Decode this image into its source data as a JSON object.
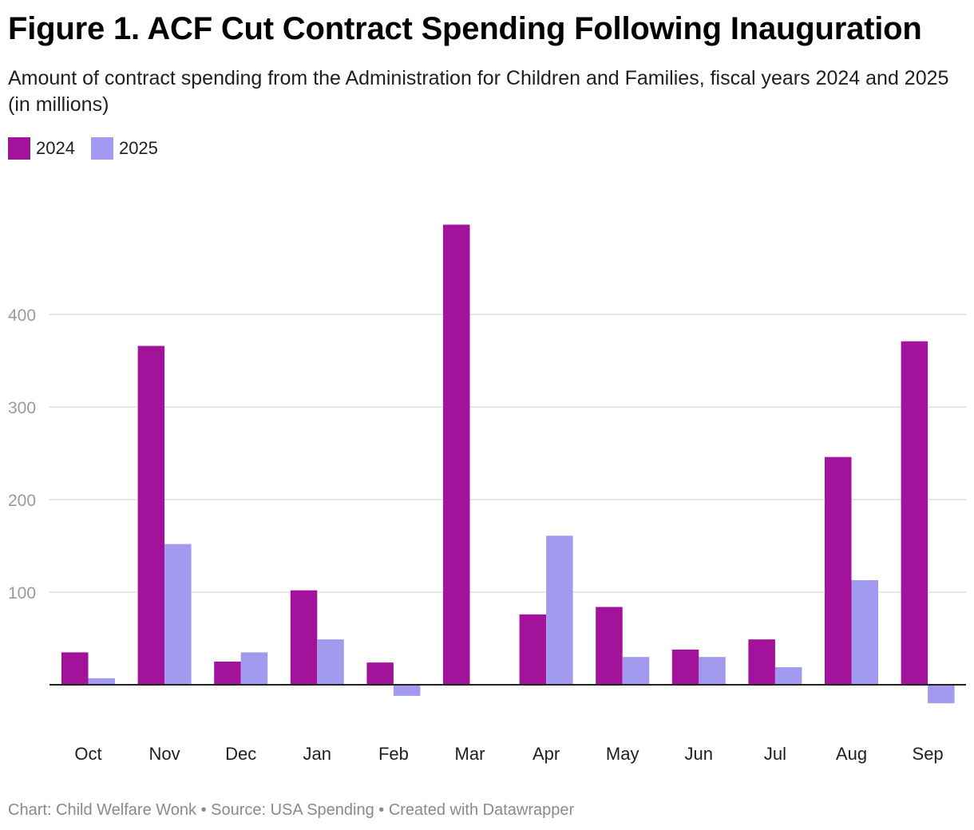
{
  "header": {
    "title": "Figure 1. ACF Cut Contract Spending Following Inauguration",
    "subtitle": "Amount of contract spending from the Administration for Children and Families, fiscal years 2024 and 2025 (in millions)"
  },
  "legend": [
    {
      "label": "2024",
      "color": "#a3129a"
    },
    {
      "label": "2025",
      "color": "#a19aee"
    }
  ],
  "footer": {
    "text": "Chart: Child Welfare Wonk • Source: USA Spending • Created with Datawrapper"
  },
  "chart_data": {
    "type": "bar",
    "title": "Figure 1. ACF Cut Contract Spending Following Inauguration",
    "subtitle": "Amount of contract spending from the Administration for Children and Families, fiscal years 2024 and 2025 (in millions)",
    "categories": [
      "Oct",
      "Nov",
      "Dec",
      "Jan",
      "Feb",
      "Mar",
      "Apr",
      "May",
      "Jun",
      "Jul",
      "Aug",
      "Sep"
    ],
    "series": [
      {
        "name": "2024",
        "color": "#a3129a",
        "values": [
          35,
          366,
          25,
          102,
          24,
          497,
          76,
          84,
          38,
          49,
          246,
          371
        ]
      },
      {
        "name": "2025",
        "color": "#a19aee",
        "values": [
          7,
          152,
          35,
          49,
          -12,
          0,
          161,
          30,
          30,
          19,
          113,
          -20
        ]
      }
    ],
    "yticks": [
      100,
      200,
      300,
      400
    ],
    "ylim": [
      -40,
      520
    ],
    "grid": true,
    "legend_position": "top-left"
  }
}
